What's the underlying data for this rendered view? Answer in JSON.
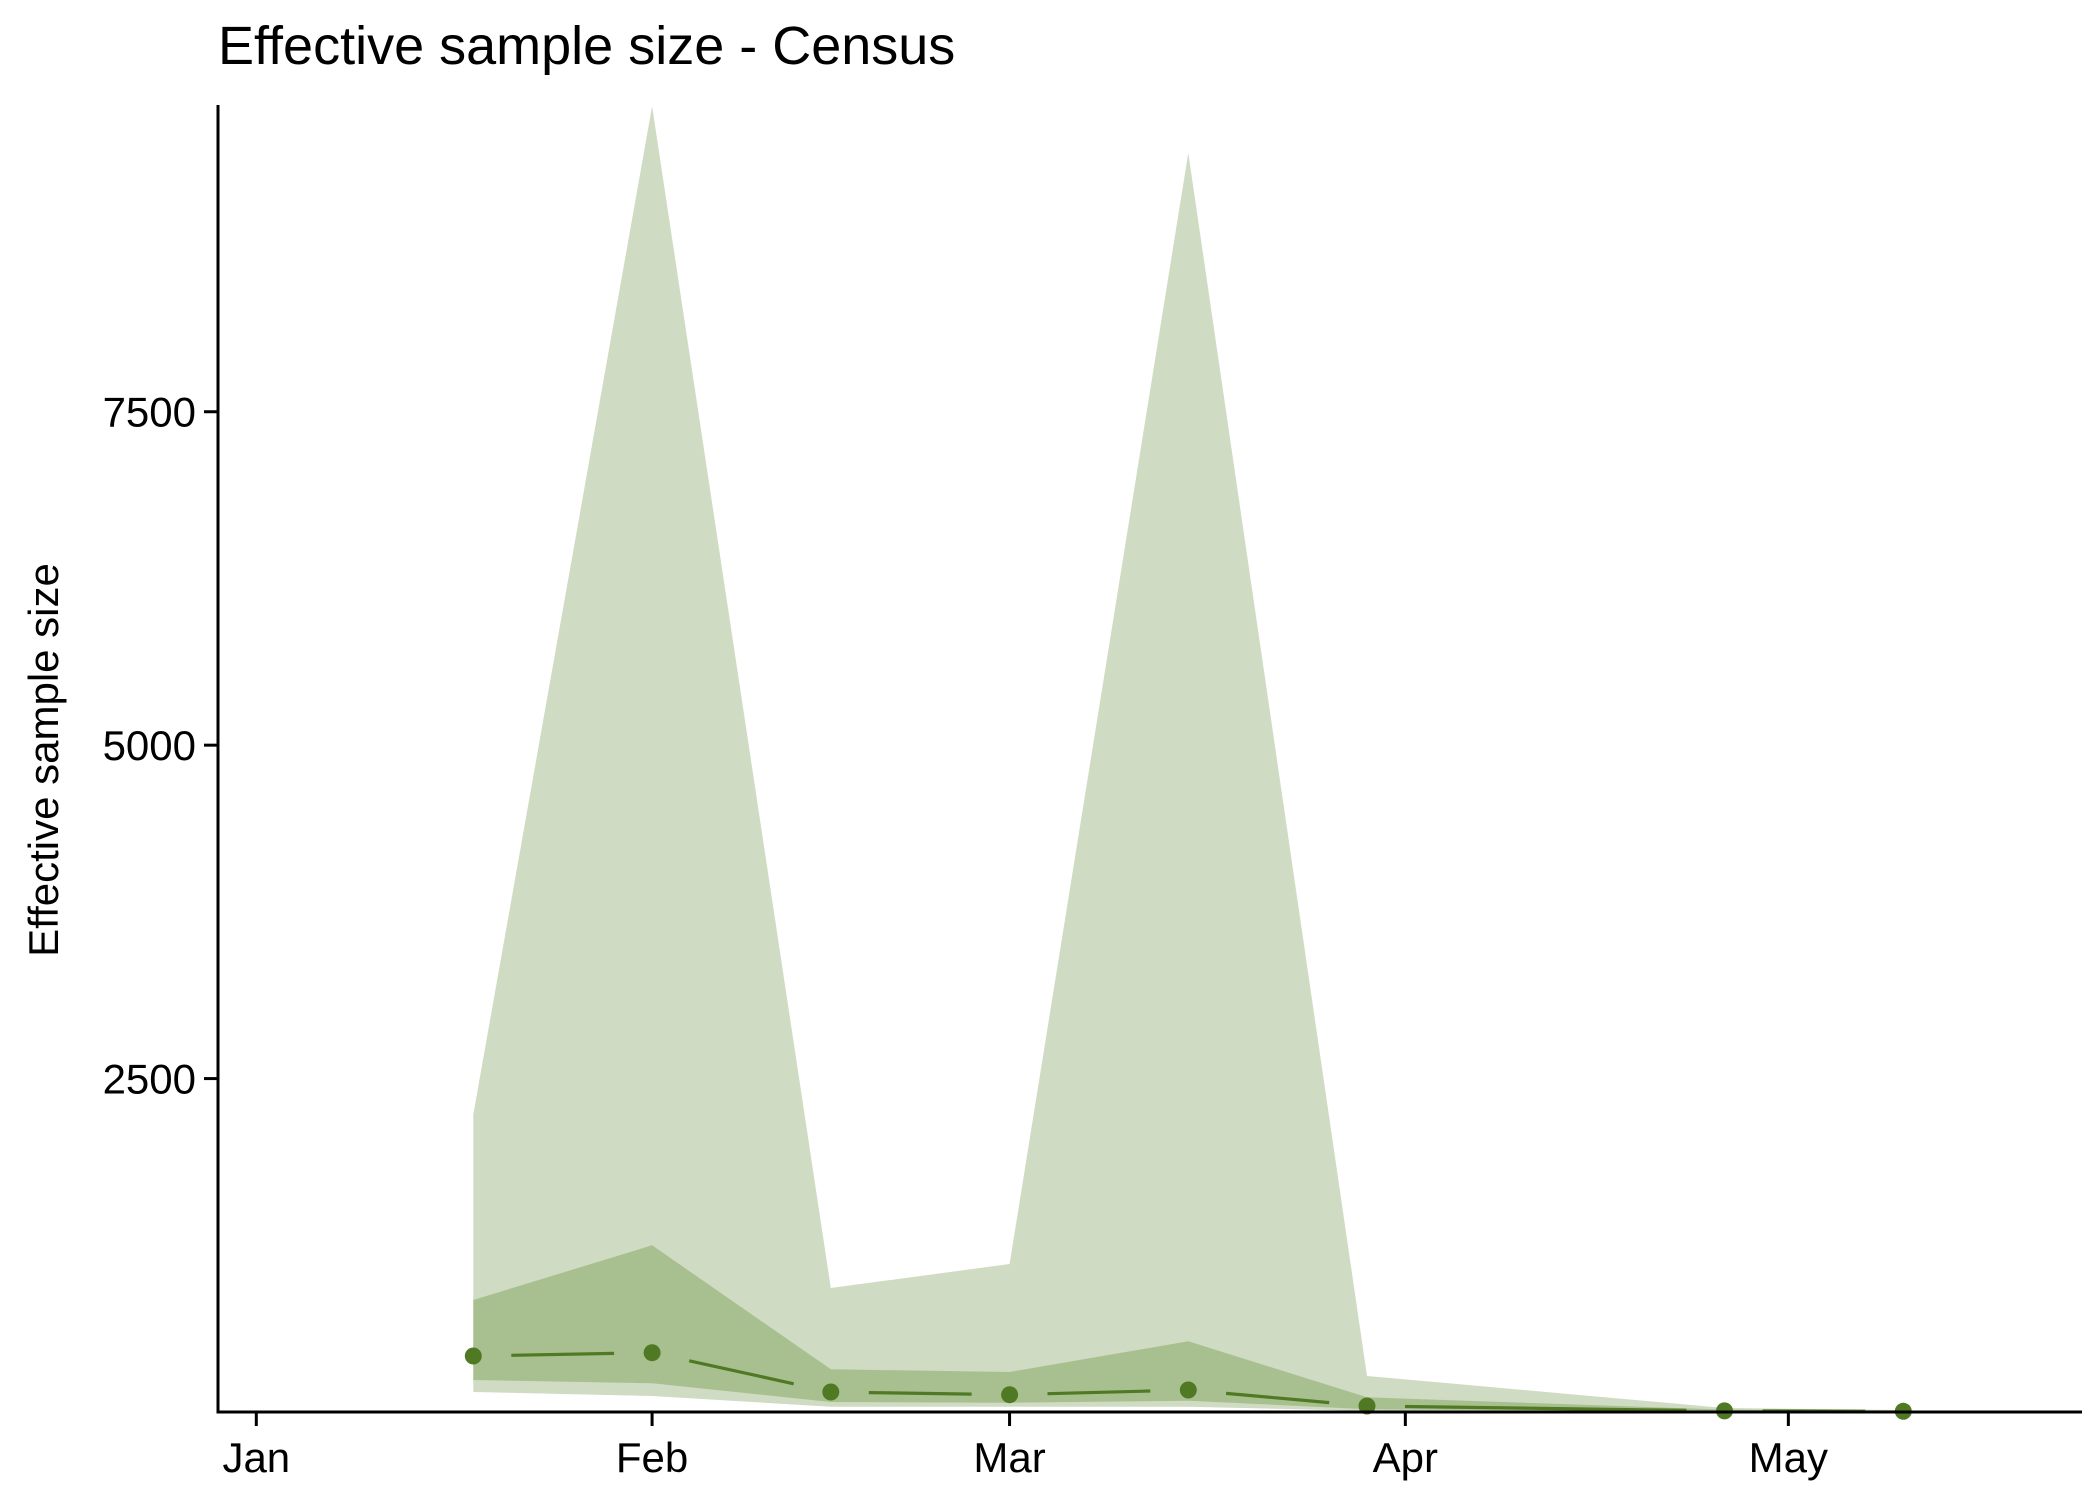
{
  "chart_data": {
    "type": "area",
    "title": "Effective sample size - Census",
    "xlabel": "",
    "ylabel": "Effective sample size",
    "x_ticks": [
      "Jan",
      "Feb",
      "Mar",
      "Apr",
      "May"
    ],
    "y_ticks": [
      2500,
      5000,
      7500
    ],
    "ylim": [
      0,
      9800
    ],
    "grid": false,
    "legend": "none",
    "colors": {
      "outer_band": "#cfdbc2",
      "inner_band": "#a8c090",
      "line": "#4f7a23",
      "point": "#4f7a23",
      "axis": "#000000"
    },
    "x": [
      "2019-01-18",
      "2019-02-01",
      "2019-02-15",
      "2019-03-01",
      "2019-03-15",
      "2019-03-29",
      "2019-04-26",
      "2019-05-10"
    ],
    "median": [
      420,
      445,
      150,
      130,
      165,
      45,
      8,
      5
    ],
    "inner_lower": [
      240,
      215,
      75,
      70,
      85,
      20,
      4,
      2
    ],
    "inner_upper": [
      840,
      1250,
      320,
      300,
      530,
      110,
      18,
      8
    ],
    "outer_lower": [
      150,
      120,
      40,
      40,
      40,
      8,
      2,
      1
    ],
    "outer_upper": [
      2230,
      9790,
      930,
      1110,
      9440,
      270,
      30,
      15
    ]
  }
}
